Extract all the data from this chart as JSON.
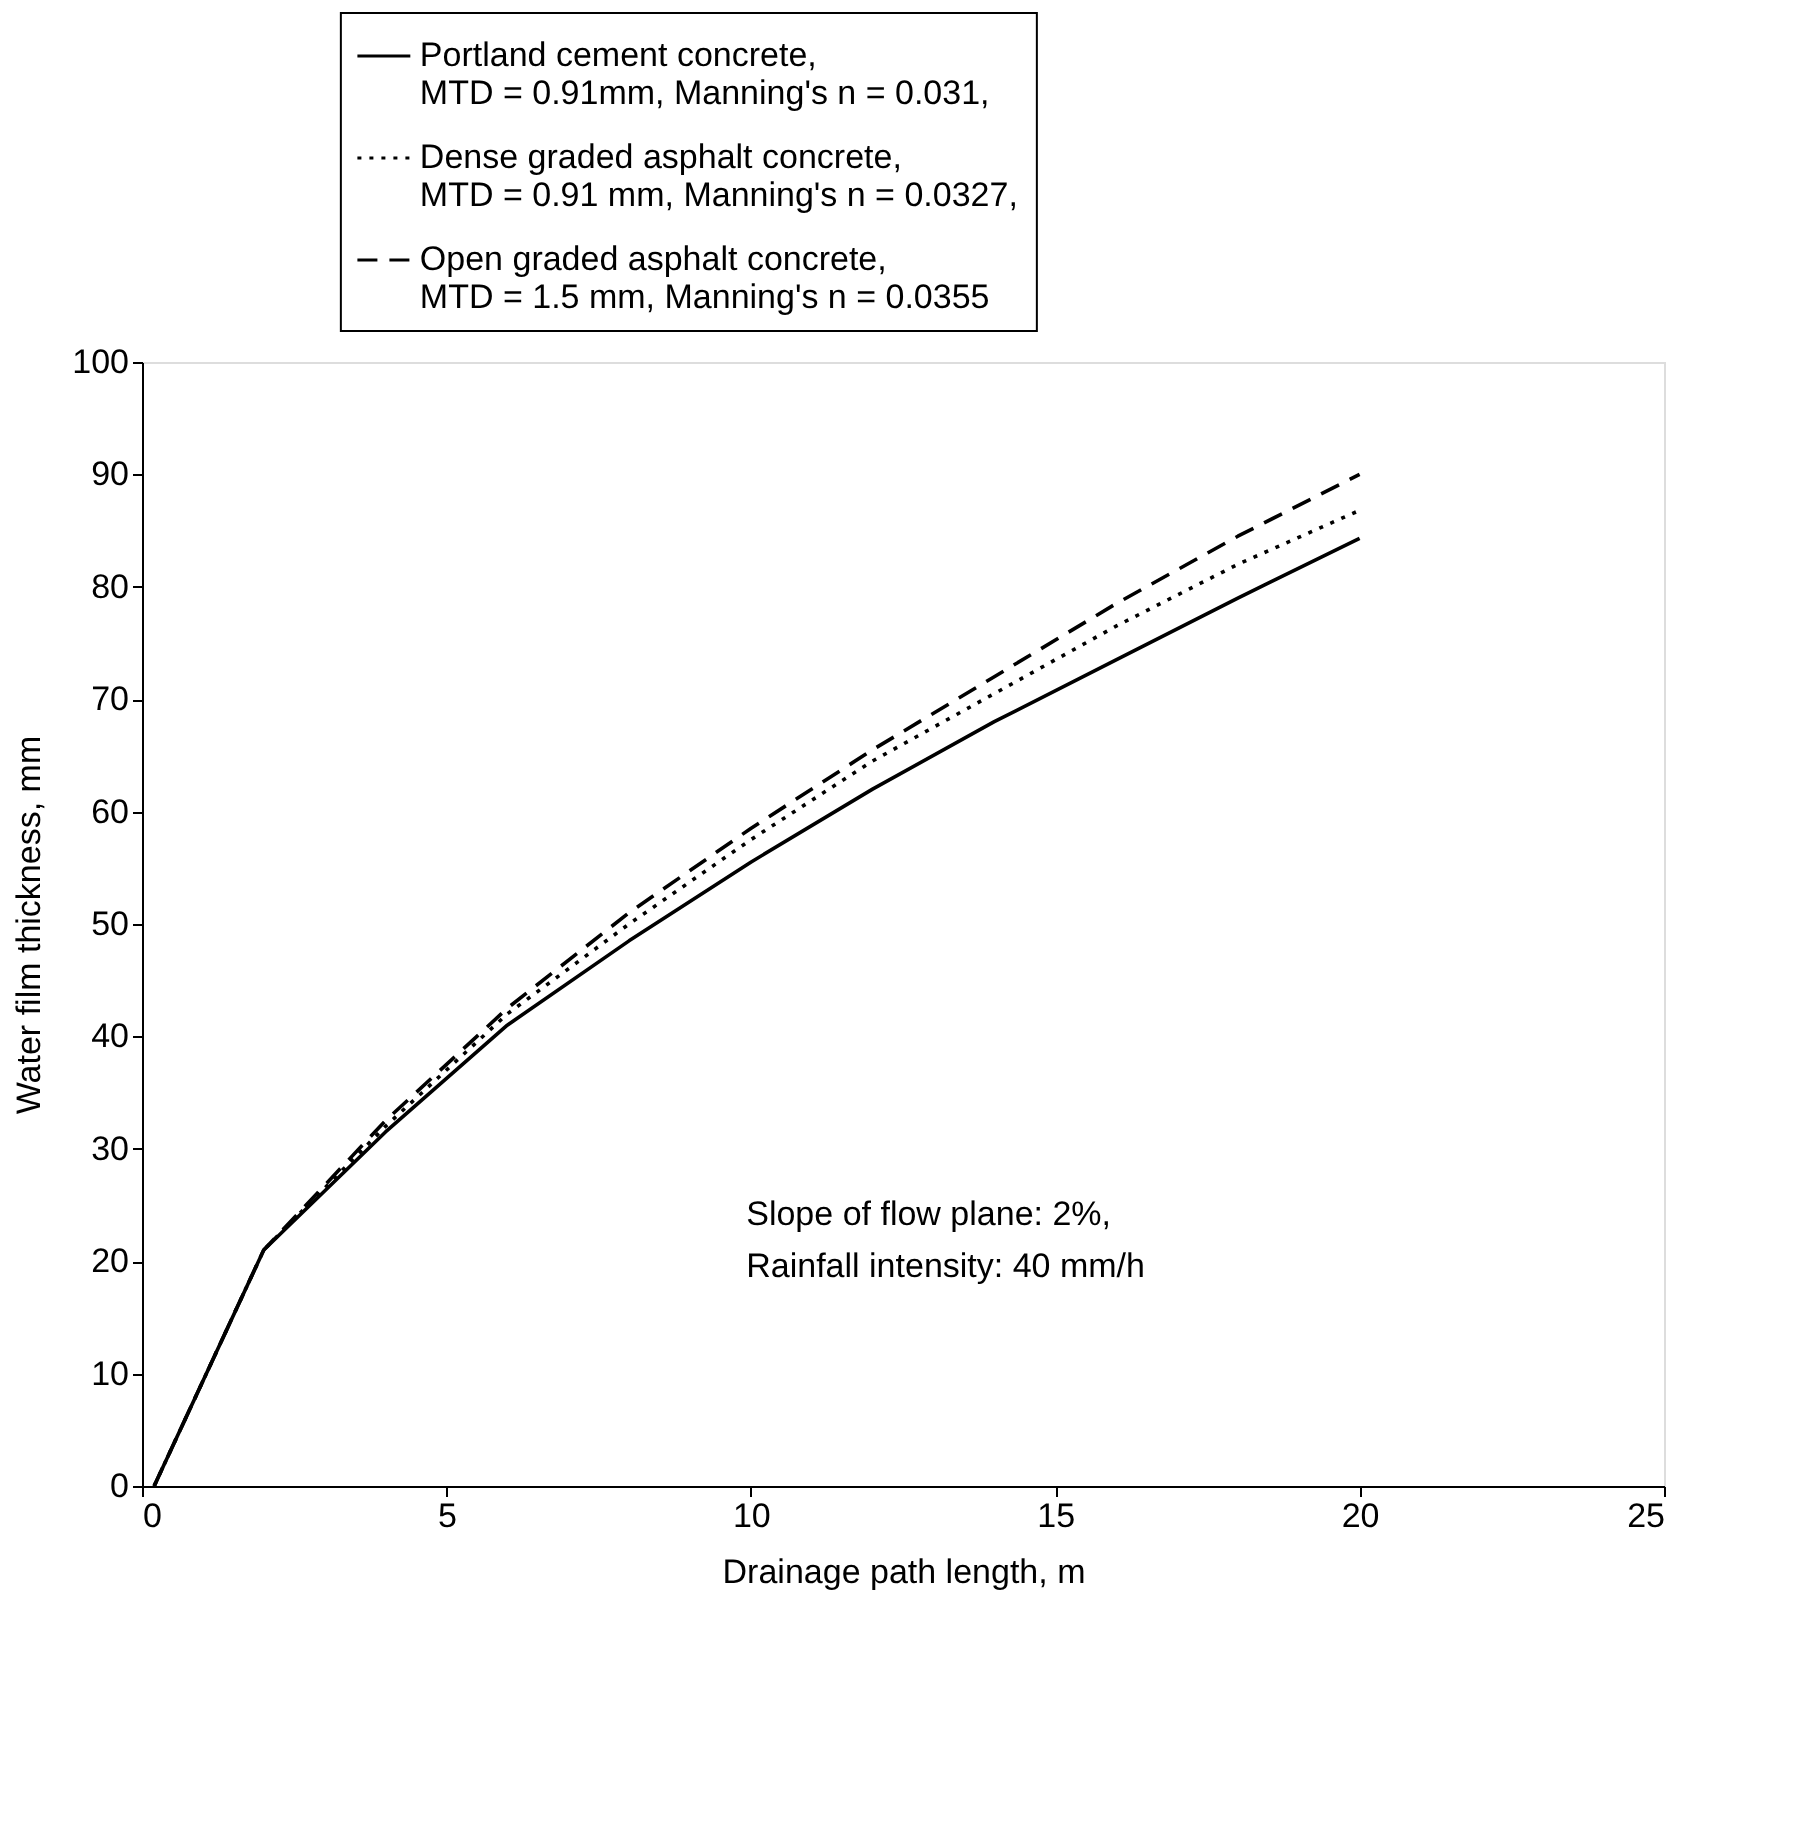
{
  "chart_data": {
    "type": "line",
    "xlabel": "Drainage path length, m",
    "ylabel": "Water film thickness, mm",
    "x": [
      0.2,
      2,
      4,
      6,
      8,
      10,
      12,
      14,
      16,
      18,
      20
    ],
    "series": [
      {
        "name": "Portland cement concrete,\nMTD = 0.91mm, Manning's n = 0.031,",
        "color": "#000000",
        "line_style": "solid",
        "values": [
          0,
          21,
          31.5,
          41,
          48.5,
          55.5,
          62,
          68,
          73.5,
          79,
          84.3
        ]
      },
      {
        "name": "Dense graded asphalt concrete,\n MTD = 0.91 mm, Manning's n = 0.0327,",
        "color": "#000000",
        "line_style": "dotted",
        "values": [
          0,
          21,
          32,
          42,
          50,
          57.5,
          64.5,
          70.5,
          76.5,
          82,
          86.8
        ]
      },
      {
        "name": "Open graded asphalt concrete,\nMTD = 1.5 mm, Manning's n = 0.0355",
        "color": "#000000",
        "line_style": "dashed",
        "values": [
          0,
          21,
          32.5,
          42.5,
          51,
          58.5,
          65.5,
          72,
          78.5,
          84.5,
          90
        ]
      }
    ],
    "xlim": [
      0,
      25
    ],
    "xticks": [
      0,
      5,
      10,
      15,
      20,
      25
    ],
    "ylim": [
      0,
      100
    ],
    "yticks": [
      0,
      10,
      20,
      30,
      40,
      50,
      60,
      70,
      80,
      90,
      100
    ],
    "grid": false,
    "legend": "top",
    "marker": "none",
    "annotations": [
      "Slope of flow plane: 2%,\nRainfall intensity: 40 mm/h"
    ]
  }
}
